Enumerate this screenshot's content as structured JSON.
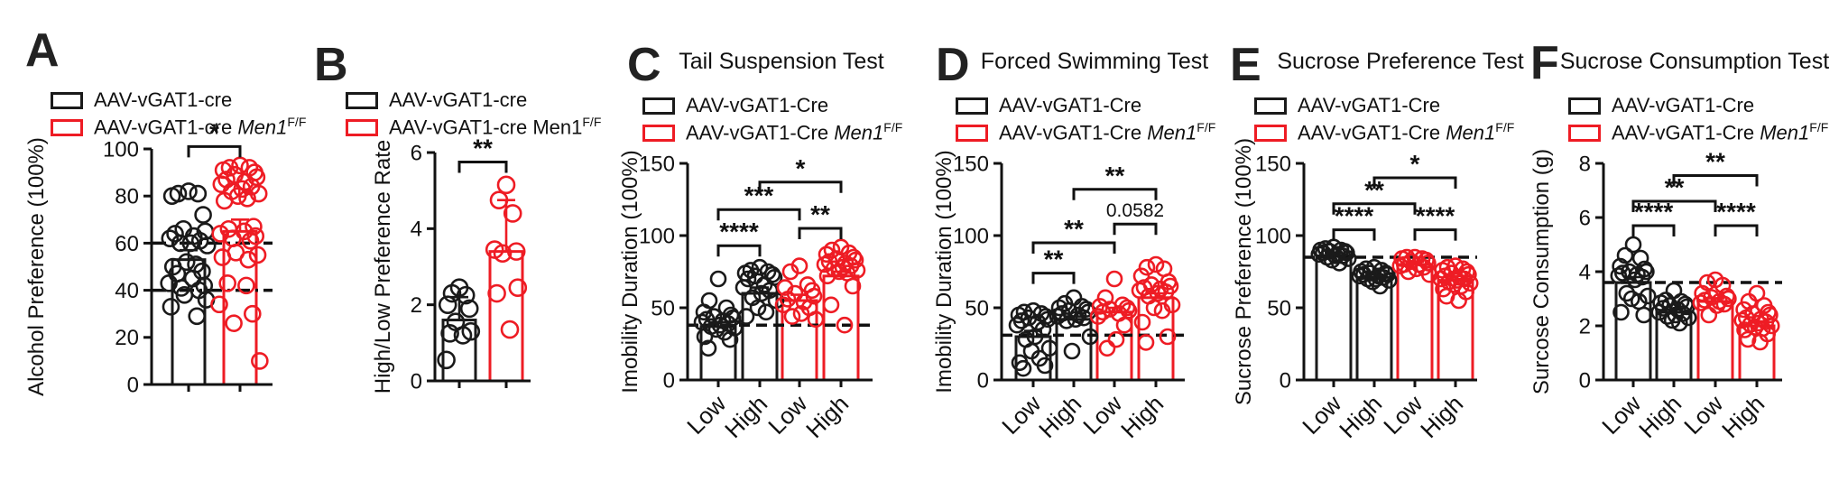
{
  "figure": {
    "background": "#ffffff"
  },
  "colors": {
    "black": "#1a1a1a",
    "red": "#ee1c24",
    "axis": "#111111"
  },
  "chart_data": [
    {
      "panel": "A",
      "type": "bar",
      "title": "",
      "ylabel": "Alcohol Preference (100%)",
      "ylim": [
        0,
        100
      ],
      "yticks": [
        0,
        20,
        40,
        60,
        80,
        100
      ],
      "dashed_lines": [
        40,
        60
      ],
      "dash_style": "dash-dot",
      "legend": [
        {
          "pre": "AAV-vGAT1-cre",
          "gene": "",
          "sup": "",
          "italic": false,
          "color": "black"
        },
        {
          "pre": "AAV-vGAT1-cre ",
          "gene": "Men1",
          "sup": "F/F",
          "italic": true,
          "color": "red"
        }
      ],
      "bars": [
        {
          "group": "AAV-vGAT1-cre",
          "category": "",
          "color": "black",
          "mean": 53,
          "sd": 4,
          "points": [
            82,
            81,
            81,
            80,
            72,
            66,
            65,
            64,
            63,
            62,
            61,
            60,
            60,
            59,
            52,
            51,
            50,
            48,
            47,
            45,
            43,
            42,
            41,
            40,
            38,
            36,
            33,
            29
          ]
        },
        {
          "group": "AAV-vGAT1-cre Men1F/F",
          "category": "",
          "color": "red",
          "mean": 65,
          "sd": 5,
          "points": [
            93,
            92,
            92,
            91,
            90,
            89,
            88,
            87,
            86,
            85,
            84,
            83,
            82,
            81,
            80,
            79,
            78,
            67,
            66,
            65,
            64,
            63,
            62,
            61,
            56,
            55,
            54,
            53,
            43,
            42,
            34,
            30,
            26,
            10
          ]
        }
      ],
      "significance": [
        {
          "from": 0,
          "to": 1,
          "y": 101,
          "label": "*"
        }
      ]
    },
    {
      "panel": "B",
      "type": "bar",
      "title": "",
      "ylabel": "High/Low Preference Rate",
      "ylim": [
        0,
        6
      ],
      "yticks": [
        0,
        2,
        4,
        6
      ],
      "dashed_lines": [],
      "dash_style": "dash",
      "legend": [
        {
          "pre": "AAV-vGAT1-cre",
          "gene": "",
          "sup": "",
          "italic": false,
          "color": "black"
        },
        {
          "pre": "AAV-vGAT1-cre ",
          "gene": "Men1",
          "sup": "F/F",
          "italic": false,
          "color": "red"
        }
      ],
      "bars": [
        {
          "group": "AAV-vGAT1-cre",
          "category": "",
          "color": "black",
          "mean": 1.6,
          "sd": 0.6,
          "points": [
            2.45,
            2.3,
            2.25,
            2.0,
            1.9,
            1.55,
            1.3,
            1.25,
            1.2,
            0.55
          ]
        },
        {
          "group": "AAV-vGAT1-cre Men1F/F",
          "category": "",
          "color": "red",
          "mean": 3.4,
          "sd": 1.35,
          "points": [
            5.15,
            4.75,
            4.4,
            3.45,
            3.4,
            3.35,
            2.45,
            2.3,
            1.35
          ]
        }
      ],
      "significance": [
        {
          "from": 0,
          "to": 1,
          "y": 5.75,
          "label": "**"
        }
      ]
    },
    {
      "panel": "C",
      "type": "bar",
      "title": "Tail Suspension Test",
      "ylabel": "Imobility Duration (100%)",
      "ylim": [
        0,
        150
      ],
      "yticks": [
        0,
        50,
        100,
        150
      ],
      "dashed_lines": [
        38
      ],
      "dash_style": "dash",
      "legend": [
        {
          "pre": "AAV-vGAT1-Cre",
          "gene": "",
          "sup": "",
          "italic": false,
          "color": "black"
        },
        {
          "pre": "AAV-vGAT1-Cre ",
          "gene": "Men1",
          "sup": "F/F",
          "italic": true,
          "color": "red"
        }
      ],
      "bars": [
        {
          "group": "AAV-vGAT1-Cre",
          "category": "Low",
          "color": "black",
          "mean": 37,
          "sd": 3,
          "points": [
            70,
            55,
            50,
            47,
            45,
            44,
            43,
            42,
            41,
            40,
            39,
            38,
            37,
            36,
            35,
            33,
            30,
            28,
            22
          ]
        },
        {
          "group": "AAV-vGAT1-Cre",
          "category": "High",
          "color": "black",
          "mean": 60,
          "sd": 4,
          "points": [
            78,
            76,
            75,
            74,
            73,
            72,
            71,
            70,
            66,
            64,
            62,
            60,
            57,
            55,
            50,
            47,
            44
          ]
        },
        {
          "group": "AAV-vGAT1-Cre Men1F/F",
          "category": "Low",
          "color": "red",
          "mean": 55,
          "sd": 4,
          "points": [
            79,
            75,
            66,
            64,
            62,
            60,
            58,
            56,
            54,
            52,
            50,
            46,
            44,
            42
          ]
        },
        {
          "group": "AAV-vGAT1-Cre Men1F/F",
          "category": "High",
          "color": "red",
          "mean": 72,
          "sd": 3,
          "points": [
            92,
            90,
            88,
            87,
            85,
            84,
            83,
            82,
            81,
            80,
            79,
            78,
            77,
            76,
            75,
            74,
            72,
            65,
            52,
            38
          ]
        }
      ],
      "significance": [
        {
          "from": 0,
          "to": 1,
          "y": 93,
          "label": "****"
        },
        {
          "from": 0,
          "to": 2,
          "y": 118,
          "label": "***"
        },
        {
          "from": 2,
          "to": 3,
          "y": 105,
          "label": "**"
        },
        {
          "from": 1,
          "to": 3,
          "y": 137,
          "label": "*"
        }
      ]
    },
    {
      "panel": "D",
      "type": "bar",
      "title": "Forced Swimming Test",
      "ylabel": "Imobility Duration (100%)",
      "ylim": [
        0,
        150
      ],
      "yticks": [
        0,
        50,
        100,
        150
      ],
      "dashed_lines": [
        31
      ],
      "dash_style": "dash",
      "legend": [
        {
          "pre": "AAV-vGAT1-Cre",
          "gene": "",
          "sup": "",
          "italic": false,
          "color": "black"
        },
        {
          "pre": "AAV-vGAT1-Cre ",
          "gene": "Men1",
          "sup": "F/F",
          "italic": true,
          "color": "red"
        }
      ],
      "bars": [
        {
          "group": "AAV-vGAT1-Cre",
          "category": "Low",
          "color": "black",
          "mean": 30,
          "sd": 4,
          "points": [
            48,
            47,
            46,
            45,
            44,
            43,
            42,
            41,
            40,
            38,
            35,
            30,
            28,
            22,
            20,
            15,
            12,
            10,
            8
          ]
        },
        {
          "group": "AAV-vGAT1-Cre",
          "category": "High",
          "color": "black",
          "mean": 42,
          "sd": 2,
          "points": [
            57,
            53,
            51,
            50,
            49,
            48,
            47,
            46,
            45,
            44,
            43,
            42,
            41,
            30,
            20
          ]
        },
        {
          "group": "AAV-vGAT1-Cre Men1F/F",
          "category": "Low",
          "color": "red",
          "mean": 47,
          "sd": 3,
          "points": [
            70,
            57,
            52,
            51,
            50,
            49,
            48,
            47,
            46,
            44,
            38,
            28,
            22
          ]
        },
        {
          "group": "AAV-vGAT1-Cre Men1F/F",
          "category": "High",
          "color": "red",
          "mean": 57,
          "sd": 3,
          "points": [
            80,
            78,
            77,
            72,
            68,
            66,
            65,
            64,
            63,
            62,
            61,
            60,
            58,
            52,
            50,
            48,
            40,
            30,
            26
          ]
        }
      ],
      "significance": [
        {
          "from": 0,
          "to": 1,
          "y": 74,
          "label": "**"
        },
        {
          "from": 0,
          "to": 2,
          "y": 95,
          "label": "**"
        },
        {
          "from": 2,
          "to": 3,
          "y": 108,
          "label": "0.0582"
        },
        {
          "from": 1,
          "to": 3,
          "y": 132,
          "label": "**"
        }
      ]
    },
    {
      "panel": "E",
      "type": "bar",
      "title": "Sucrose Preference Test",
      "ylabel": "Sucrose Preference (100%)",
      "ylim": [
        0,
        150
      ],
      "yticks": [
        0,
        50,
        100,
        150
      ],
      "dashed_lines": [
        85
      ],
      "dash_style": "dash",
      "legend": [
        {
          "pre": "AAV-vGAT1-Cre",
          "gene": "",
          "sup": "",
          "italic": false,
          "color": "black"
        },
        {
          "pre": "AAV-vGAT1-Cre ",
          "gene": "Men1",
          "sup": "F/F",
          "italic": true,
          "color": "red"
        }
      ],
      "bars": [
        {
          "group": "AAV-vGAT1-Cre",
          "category": "Low",
          "color": "black",
          "mean": 86,
          "sd": 2,
          "points": [
            92,
            91,
            90,
            90,
            89,
            89,
            88,
            88,
            87,
            87,
            86,
            86,
            85,
            84,
            83,
            81
          ]
        },
        {
          "group": "AAV-vGAT1-Cre",
          "category": "High",
          "color": "black",
          "mean": 71,
          "sd": 2,
          "points": [
            78,
            77,
            76,
            75,
            74,
            74,
            73,
            73,
            72,
            72,
            71,
            70,
            70,
            69,
            68,
            65
          ]
        },
        {
          "group": "AAV-vGAT1-Cre Men1F/F",
          "category": "Low",
          "color": "red",
          "mean": 80,
          "sd": 2,
          "points": [
            85,
            85,
            84,
            84,
            83,
            82,
            81,
            80,
            80,
            79,
            78,
            77,
            75,
            73
          ]
        },
        {
          "group": "AAV-vGAT1-Cre Men1F/F",
          "category": "High",
          "color": "red",
          "mean": 69,
          "sd": 3,
          "points": [
            79,
            78,
            77,
            76,
            75,
            74,
            73,
            72,
            71,
            70,
            70,
            69,
            68,
            67,
            66,
            65,
            63,
            61,
            58,
            55
          ]
        }
      ],
      "significance": [
        {
          "from": 0,
          "to": 1,
          "y": 104,
          "label": "****"
        },
        {
          "from": 0,
          "to": 2,
          "y": 122,
          "label": "**"
        },
        {
          "from": 2,
          "to": 3,
          "y": 104,
          "label": "****"
        },
        {
          "from": 1,
          "to": 3,
          "y": 140,
          "label": "*"
        }
      ]
    },
    {
      "panel": "F",
      "type": "bar",
      "title": "Sucrose Consumption Test",
      "ylabel": "Surcose Consumption (g)",
      "ylim": [
        0,
        8
      ],
      "yticks": [
        0,
        2,
        4,
        6,
        8
      ],
      "dashed_lines": [
        3.6
      ],
      "dash_style": "dash",
      "legend": [
        {
          "pre": "AAV-vGAT1-Cre",
          "gene": "",
          "sup": "",
          "italic": false,
          "color": "black"
        },
        {
          "pre": "AAV-vGAT1-Cre ",
          "gene": "Men1",
          "sup": "F/F",
          "italic": true,
          "color": "red"
        }
      ],
      "bars": [
        {
          "group": "AAV-vGAT1-Cre",
          "category": "Low",
          "color": "black",
          "mean": 3.6,
          "sd": 0.2,
          "points": [
            5.0,
            4.6,
            4.5,
            4.2,
            4.1,
            4.0,
            4.0,
            3.95,
            3.9,
            3.85,
            3.8,
            3.7,
            3.2,
            3.1,
            3.0,
            2.9,
            2.5,
            2.4
          ]
        },
        {
          "group": "AAV-vGAT1-Cre",
          "category": "High",
          "color": "black",
          "mean": 2.5,
          "sd": 0.1,
          "points": [
            3.3,
            2.95,
            2.9,
            2.85,
            2.8,
            2.75,
            2.7,
            2.65,
            2.6,
            2.5,
            2.45,
            2.4,
            2.35,
            2.3,
            2.2,
            2.1
          ]
        },
        {
          "group": "AAV-vGAT1-Cre Men1F/F",
          "category": "Low",
          "color": "red",
          "mean": 2.9,
          "sd": 0.12,
          "points": [
            3.7,
            3.6,
            3.5,
            3.2,
            3.1,
            3.05,
            3.0,
            2.95,
            2.9,
            2.85,
            2.8,
            2.75,
            2.4
          ]
        },
        {
          "group": "AAV-vGAT1-Cre Men1F/F",
          "category": "High",
          "color": "red",
          "mean": 2.0,
          "sd": 0.12,
          "points": [
            3.2,
            2.9,
            2.75,
            2.6,
            2.5,
            2.45,
            2.4,
            2.3,
            2.25,
            2.2,
            2.15,
            2.1,
            2.05,
            2.0,
            1.95,
            1.9,
            1.85,
            1.7,
            1.5,
            1.4
          ]
        }
      ],
      "significance": [
        {
          "from": 0,
          "to": 1,
          "y": 5.7,
          "label": "****"
        },
        {
          "from": 0,
          "to": 2,
          "y": 6.6,
          "label": "**"
        },
        {
          "from": 2,
          "to": 3,
          "y": 5.7,
          "label": "****"
        },
        {
          "from": 1,
          "to": 3,
          "y": 7.55,
          "label": "**"
        }
      ]
    }
  ]
}
